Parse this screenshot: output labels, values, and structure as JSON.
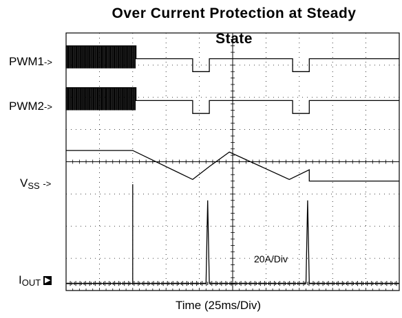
{
  "chart_data": {
    "type": "line",
    "title": "Over Current Protection at Steady State",
    "title_line1": "Over Current Protection at Steady",
    "title_line2": "State",
    "xlabel": "Time (25ms/Div)",
    "x_divisions": 10,
    "y_divisions": 8,
    "grid": true,
    "channels": [
      {
        "name": "PWM1",
        "label_main": "PWM1",
        "label_sub": "",
        "arrow": "->"
      },
      {
        "name": "PWM2",
        "label_main": "PWM2",
        "label_sub": "",
        "arrow": "->"
      },
      {
        "name": "VSS",
        "label_main": "V",
        "label_sub": "SS",
        "arrow": "->"
      },
      {
        "name": "IOUT",
        "label_main": "I",
        "label_sub": "OUT",
        "arrow": "▶"
      }
    ],
    "iout_scale": "20A/Div",
    "series": [
      {
        "name": "PWM1",
        "x": [
          0,
          2.1,
          2.1,
          3.8,
          3.8,
          4.3,
          4.3,
          6.8,
          6.8,
          7.3,
          7.3,
          10
        ],
        "y": [
          7.6,
          7.6,
          7.2,
          7.2,
          6.8,
          6.8,
          7.2,
          7.2,
          6.8,
          6.8,
          7.2,
          7.2
        ]
      },
      {
        "name": "PWM2",
        "x": [
          0,
          2.1,
          2.1,
          3.8,
          3.8,
          4.3,
          4.3,
          6.8,
          6.8,
          7.3,
          7.3,
          10
        ],
        "y": [
          6.3,
          6.3,
          5.9,
          5.9,
          5.5,
          5.5,
          5.9,
          5.9,
          5.5,
          5.5,
          5.9,
          5.9
        ]
      },
      {
        "name": "VSS",
        "x": [
          0,
          2.0,
          3.8,
          4.3,
          4.9,
          6.7,
          7.3,
          7.3,
          10
        ],
        "y": [
          4.35,
          4.35,
          3.45,
          3.85,
          4.3,
          3.45,
          3.75,
          3.4,
          3.4
        ]
      },
      {
        "name": "IOUT",
        "x": [
          0,
          2.0,
          2.0,
          2.0,
          4.2,
          4.25,
          4.3,
          7.2,
          7.25,
          7.3,
          10
        ],
        "y": [
          0.22,
          0.22,
          3.3,
          0.22,
          0.22,
          2.8,
          0.22,
          0.22,
          2.8,
          0.22,
          0.22
        ]
      }
    ]
  }
}
